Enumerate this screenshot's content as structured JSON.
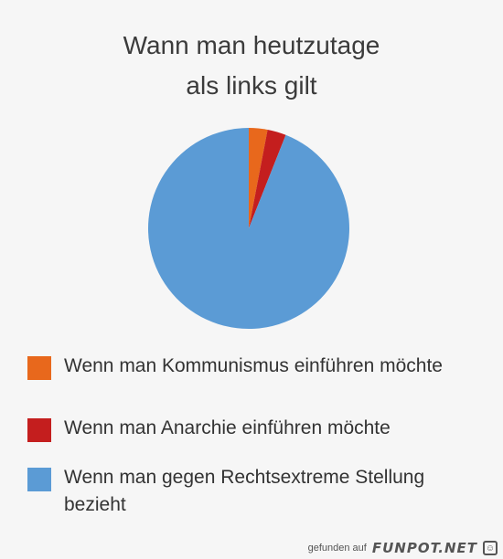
{
  "chart_data": {
    "type": "pie",
    "title_lines": [
      "Wann man heutzutage",
      "als links gilt"
    ],
    "slices": [
      {
        "label": "Wenn man Kommunismus einführen möchte",
        "value": 3,
        "color": "#e8681c"
      },
      {
        "label": "Wenn man Anarchie einführen möchte",
        "value": 3,
        "color": "#c41e1e"
      },
      {
        "label": "Wenn man gegen Rechtsextreme Stellung bezieht",
        "value": 94,
        "color": "#5b9bd5"
      }
    ],
    "legend_placement": "bottom"
  },
  "footer": {
    "prefix": "gefunden auf",
    "brand": "FUNPOT.NET"
  }
}
